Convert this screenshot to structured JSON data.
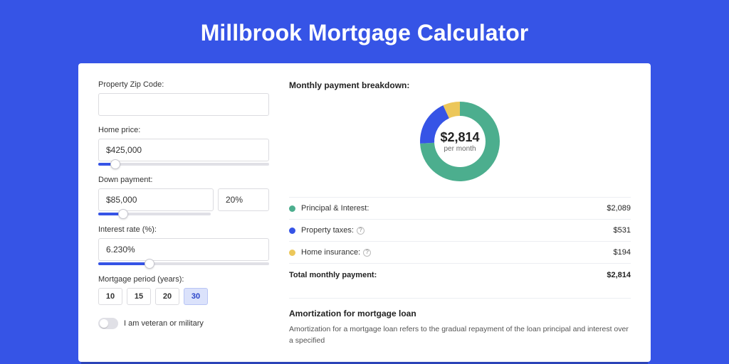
{
  "page": {
    "title": "Millbrook Mortgage Calculator"
  },
  "colors": {
    "page_bg": "#3654e6",
    "card_bg": "#ffffff",
    "accent": "#3654e6"
  },
  "form": {
    "zip": {
      "label": "Property Zip Code:",
      "value": ""
    },
    "homePrice": {
      "label": "Home price:",
      "value": "$425,000",
      "slider_pct": 10
    },
    "downPayment": {
      "label": "Down payment:",
      "value": "$85,000",
      "pct": "20%",
      "slider_pct": 22
    },
    "interestRate": {
      "label": "Interest rate (%):",
      "value": "6.230%",
      "slider_pct": 30
    },
    "period": {
      "label": "Mortgage period (years):",
      "options": [
        "10",
        "15",
        "20",
        "30"
      ],
      "active_index": 3
    },
    "veteran": {
      "label": "I am veteran or military",
      "checked": false
    }
  },
  "breakdown": {
    "title": "Monthly payment breakdown:",
    "center_value": "$2,814",
    "center_label": "per month",
    "donut": {
      "slices": [
        {
          "label": "Principal & Interest",
          "value": 2089,
          "color": "#4cae8e",
          "pct": 74.2
        },
        {
          "label": "Property taxes",
          "value": 531,
          "color": "#3654e6",
          "pct": 18.9
        },
        {
          "label": "Home insurance",
          "value": 194,
          "color": "#ecc75a",
          "pct": 6.9
        }
      ],
      "inner_radius": 36,
      "outer_radius": 56,
      "bg": "#ffffff"
    },
    "items": [
      {
        "label": "Principal & Interest:",
        "value": "$2,089",
        "color": "#4cae8e",
        "info": false
      },
      {
        "label": "Property taxes:",
        "value": "$531",
        "color": "#3654e6",
        "info": true
      },
      {
        "label": "Home insurance:",
        "value": "$194",
        "color": "#ecc75a",
        "info": true
      }
    ],
    "total": {
      "label": "Total monthly payment:",
      "value": "$2,814"
    }
  },
  "amortization": {
    "title": "Amortization for mortgage loan",
    "text": "Amortization for a mortgage loan refers to the gradual repayment of the loan principal and interest over a specified"
  }
}
